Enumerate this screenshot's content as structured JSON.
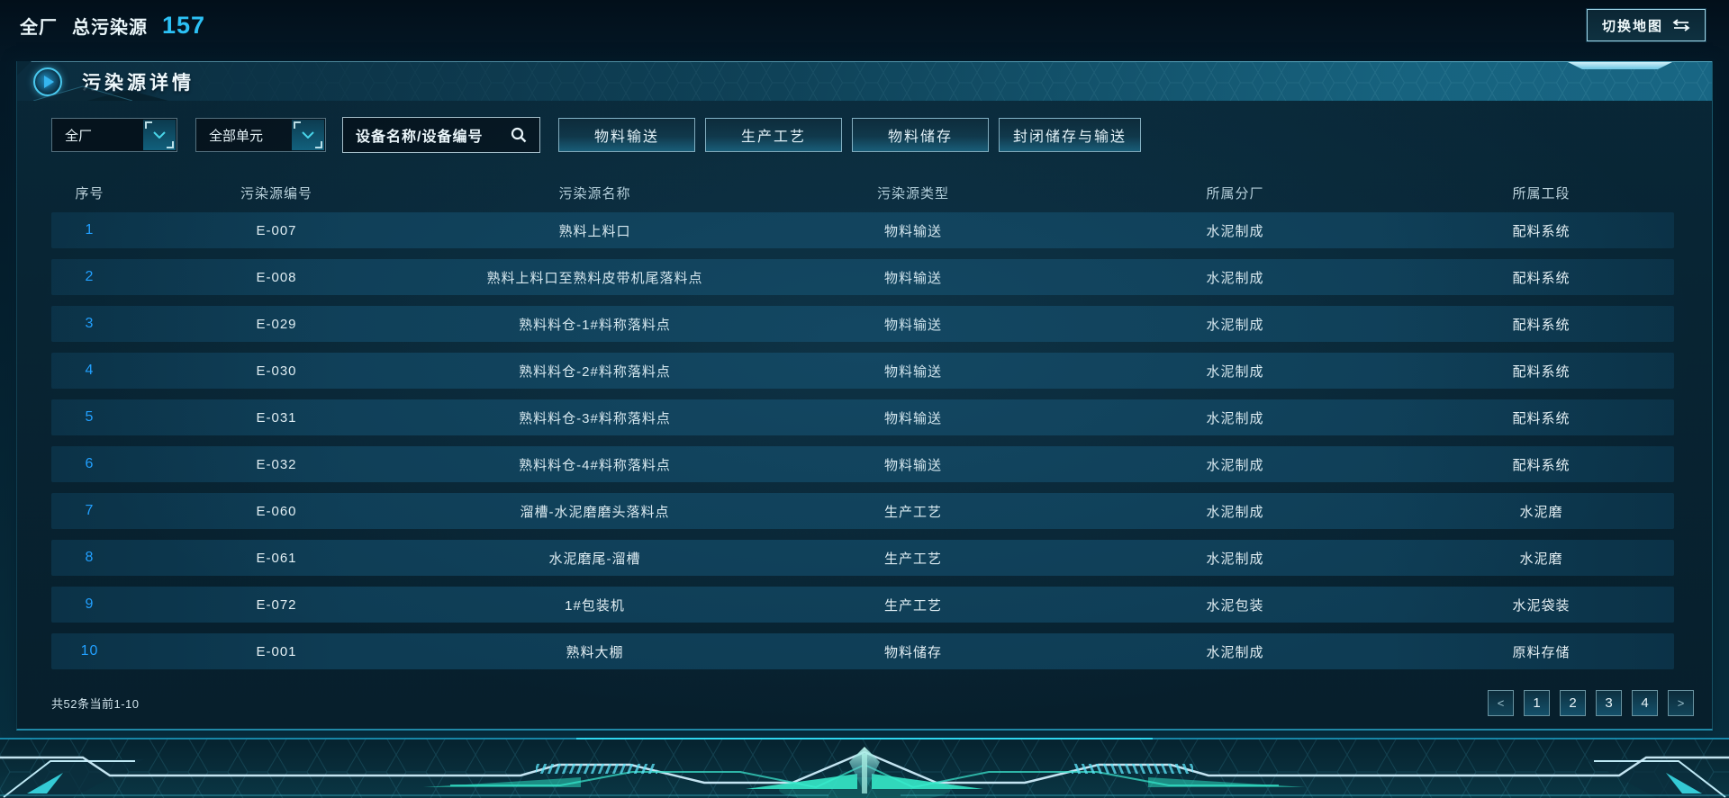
{
  "topbar": {
    "scope": "全厂",
    "total_label": "总污染源",
    "total_value": "157",
    "switch_map_label": "切换地图"
  },
  "panel": {
    "title": "污染源详情"
  },
  "filters": {
    "factory_select_value": "全厂",
    "unit_select_value": "全部单元",
    "search_placeholder": "设备名称/设备编号",
    "type_buttons": [
      "物料输送",
      "生产工艺",
      "物料储存",
      "封闭储存与输送"
    ]
  },
  "table": {
    "columns": [
      "序号",
      "污染源编号",
      "污染源名称",
      "污染源类型",
      "所属分厂",
      "所属工段"
    ],
    "rows": [
      [
        "1",
        "E-007",
        "熟料上料口",
        "物料输送",
        "水泥制成",
        "配料系统"
      ],
      [
        "2",
        "E-008",
        "熟料上料口至熟料皮带机尾落料点",
        "物料输送",
        "水泥制成",
        "配料系统"
      ],
      [
        "3",
        "E-029",
        "熟料料仓-1#料称落料点",
        "物料输送",
        "水泥制成",
        "配料系统"
      ],
      [
        "4",
        "E-030",
        "熟料料仓-2#料称落料点",
        "物料输送",
        "水泥制成",
        "配料系统"
      ],
      [
        "5",
        "E-031",
        "熟料料仓-3#料称落料点",
        "物料输送",
        "水泥制成",
        "配料系统"
      ],
      [
        "6",
        "E-032",
        "熟料料仓-4#料称落料点",
        "物料输送",
        "水泥制成",
        "配料系统"
      ],
      [
        "7",
        "E-060",
        "溜槽-水泥磨磨头落料点",
        "生产工艺",
        "水泥制成",
        "水泥磨"
      ],
      [
        "8",
        "E-061",
        "水泥磨尾-溜槽",
        "生产工艺",
        "水泥制成",
        "水泥磨"
      ],
      [
        "9",
        "E-072",
        "1#包装机",
        "生产工艺",
        "水泥包装",
        "水泥袋装"
      ],
      [
        "10",
        "E-001",
        "熟料大棚",
        "物料储存",
        "水泥制成",
        "原料存储"
      ]
    ]
  },
  "footer": {
    "summary": "共52条当前1-10",
    "prev_label": "<",
    "next_label": ">",
    "pages": [
      "1",
      "2",
      "3",
      "4"
    ]
  },
  "icons": {
    "switch_map": "swap-arrows",
    "select_chevron": "chevron-down",
    "search": "magnifier",
    "panel_bullet": "play"
  },
  "colors": {
    "accent_cyan": "#2cc1f5",
    "index_blue": "#22a0ff",
    "header_teal": "#17637f",
    "row_bg": "#0e3c54",
    "glow_teal": "#2fe9c9"
  }
}
